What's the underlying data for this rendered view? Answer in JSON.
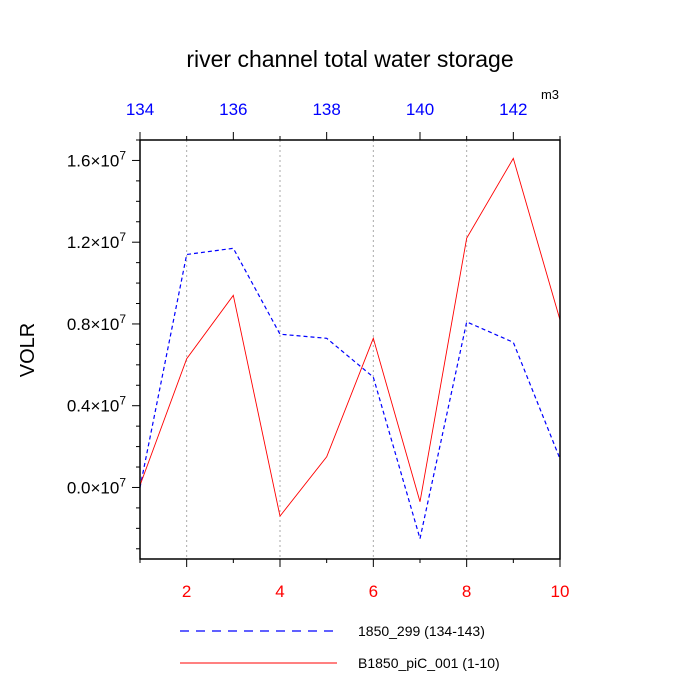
{
  "chart_data": {
    "type": "line",
    "title": "river channel total water storage",
    "units_label": "m3",
    "ylabel": "VOLR",
    "ylim": [
      -0.35,
      1.7
    ],
    "y_tick_exponent": "7",
    "y_ticks": [
      {
        "value": 0.0,
        "mantissa": "0.0"
      },
      {
        "value": 0.4,
        "mantissa": "0.4"
      },
      {
        "value": 0.8,
        "mantissa": "0.8"
      },
      {
        "value": 1.2,
        "mantissa": "1.2"
      },
      {
        "value": 1.6,
        "mantissa": "1.6"
      }
    ],
    "x_bottom": {
      "lim": [
        1,
        10
      ],
      "ticks": [
        2,
        4,
        6,
        8,
        10
      ],
      "color": "#ff0000"
    },
    "x_top": {
      "lim": [
        134,
        143
      ],
      "ticks": [
        134,
        136,
        138,
        140,
        142
      ],
      "color": "#0000ff"
    },
    "grid": "dotted vertical lines at bottom-axis ticks",
    "legend_position": "bottom",
    "series": [
      {
        "name": "1850_299 (134-143)",
        "color": "#0000ff",
        "dash": "dashed",
        "axis": "top",
        "x": [
          134,
          135,
          136,
          137,
          138,
          139,
          140,
          141,
          142,
          143
        ],
        "values": [
          0.0,
          1.14,
          1.17,
          0.75,
          0.73,
          0.54,
          -0.25,
          0.81,
          0.71,
          0.14
        ]
      },
      {
        "name": "B1850_piC_001 (1-10)",
        "color": "#ff0000",
        "dash": "solid",
        "axis": "bottom",
        "x": [
          1,
          2,
          3,
          4,
          5,
          6,
          7,
          8,
          9,
          10
        ],
        "values": [
          0.01,
          0.63,
          0.94,
          -0.14,
          0.15,
          0.73,
          -0.07,
          1.22,
          1.61,
          0.82
        ]
      }
    ]
  }
}
